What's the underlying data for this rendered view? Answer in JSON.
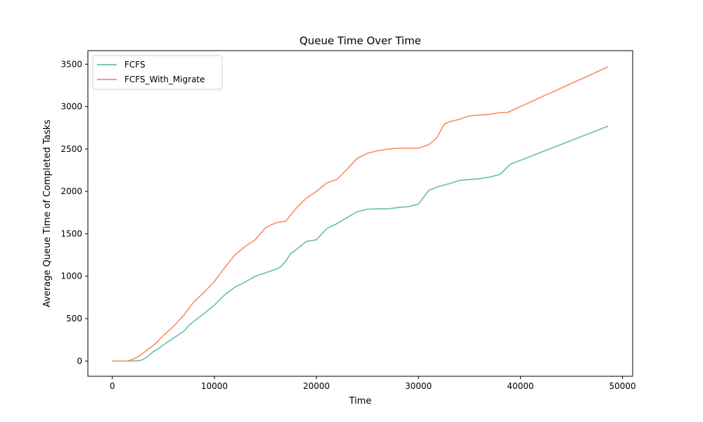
{
  "chart_data": {
    "type": "line",
    "title": "Queue Time Over Time",
    "xlabel": "Time",
    "ylabel": "Average Queue Time of Completed Tasks",
    "xlim": [
      -2400,
      51000
    ],
    "ylim": [
      -180,
      3660
    ],
    "xticks": [
      0,
      10000,
      20000,
      30000,
      40000,
      50000
    ],
    "yticks": [
      0,
      500,
      1000,
      1500,
      2000,
      2500,
      3000,
      3500
    ],
    "grid": false,
    "legend_position": "top-left",
    "series": [
      {
        "name": "FCFS",
        "color": "#66c2a5",
        "x": [
          0,
          2000,
          2700,
          3000,
          3500,
          4000,
          4500,
          5000,
          6000,
          7000,
          7500,
          8000,
          9000,
          10000,
          11000,
          12000,
          13000,
          14000,
          15000,
          16000,
          16500,
          17000,
          17500,
          18000,
          19000,
          20000,
          21000,
          22000,
          23000,
          24000,
          25000,
          26000,
          27000,
          28000,
          29000,
          30000,
          30500,
          31000,
          32000,
          33000,
          34000,
          35000,
          36000,
          37000,
          38000,
          39000,
          48600
        ],
        "y": [
          0,
          0,
          5,
          20,
          55,
          110,
          145,
          190,
          270,
          350,
          420,
          470,
          560,
          660,
          780,
          870,
          930,
          1000,
          1040,
          1080,
          1110,
          1180,
          1270,
          1310,
          1410,
          1430,
          1560,
          1620,
          1690,
          1760,
          1790,
          1795,
          1795,
          1810,
          1820,
          1850,
          1930,
          2010,
          2060,
          2090,
          2130,
          2140,
          2150,
          2170,
          2200,
          2320,
          2770
        ]
      },
      {
        "name": "FCFS_With_Migrate",
        "color": "#fc8d62",
        "x": [
          0,
          1500,
          2000,
          2500,
          3000,
          3500,
          4000,
          5000,
          6000,
          7000,
          8000,
          9000,
          10000,
          11000,
          12000,
          13000,
          14000,
          15000,
          16000,
          17000,
          18000,
          19000,
          20000,
          21000,
          22000,
          23000,
          24000,
          25000,
          26000,
          27000,
          28000,
          29000,
          30000,
          31000,
          31800,
          32500,
          33000,
          34000,
          35000,
          36000,
          37000,
          38000,
          38700,
          48600
        ],
        "y": [
          0,
          0,
          20,
          50,
          90,
          140,
          180,
          300,
          410,
          540,
          700,
          810,
          940,
          1100,
          1250,
          1350,
          1430,
          1570,
          1630,
          1650,
          1800,
          1920,
          2000,
          2100,
          2140,
          2260,
          2390,
          2450,
          2480,
          2500,
          2510,
          2510,
          2510,
          2550,
          2630,
          2790,
          2820,
          2850,
          2890,
          2900,
          2910,
          2930,
          2930,
          3470
        ]
      }
    ]
  }
}
